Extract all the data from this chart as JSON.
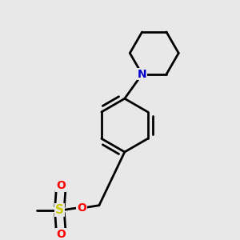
{
  "background_color": "#e8e8e8",
  "bond_color": "#000000",
  "N_color": "#0000cc",
  "O_color": "#ff0000",
  "S_color": "#cccc00",
  "line_width": 2.0,
  "figsize": [
    3.0,
    3.0
  ],
  "dpi": 100,
  "xlim": [
    0.05,
    0.95
  ],
  "ylim": [
    0.02,
    1.0
  ]
}
